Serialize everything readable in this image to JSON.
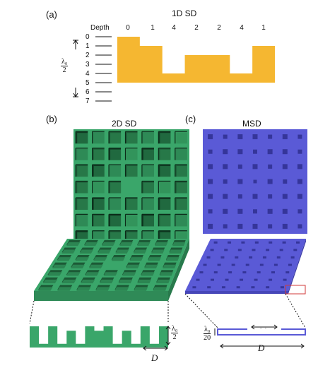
{
  "panel_a": {
    "label": "(a)",
    "title": "1D SD",
    "depth_header": "Depth",
    "depth_ticks": [
      "0",
      "1",
      "2",
      "3",
      "4",
      "5",
      "6",
      "7"
    ],
    "sequence": [
      "0",
      "1",
      "4",
      "2",
      "2",
      "4",
      "1"
    ],
    "lambda_num": "λ₀",
    "lambda_den": "2"
  },
  "panel_b": {
    "label": "(b)",
    "title": "2D SD",
    "lambda_num": "λ₀",
    "lambda_den": "2",
    "period_label": "D"
  },
  "panel_c": {
    "label": "(c)",
    "title": "MSD",
    "lambda_num": "λ₀",
    "lambda_den": "20",
    "width_label": "w",
    "period_label": "D"
  },
  "colors": {
    "sd1d_fill": "#f5b731",
    "sd2d_green": "#3aa66a",
    "sd2d_dark": "#1f6b40",
    "msd_blue": "#5a5ad6",
    "msd_dark": "#35359a",
    "highlight_red": "#d23a3a"
  },
  "depths_1d": [
    0,
    1,
    4,
    2,
    2,
    4,
    1
  ]
}
